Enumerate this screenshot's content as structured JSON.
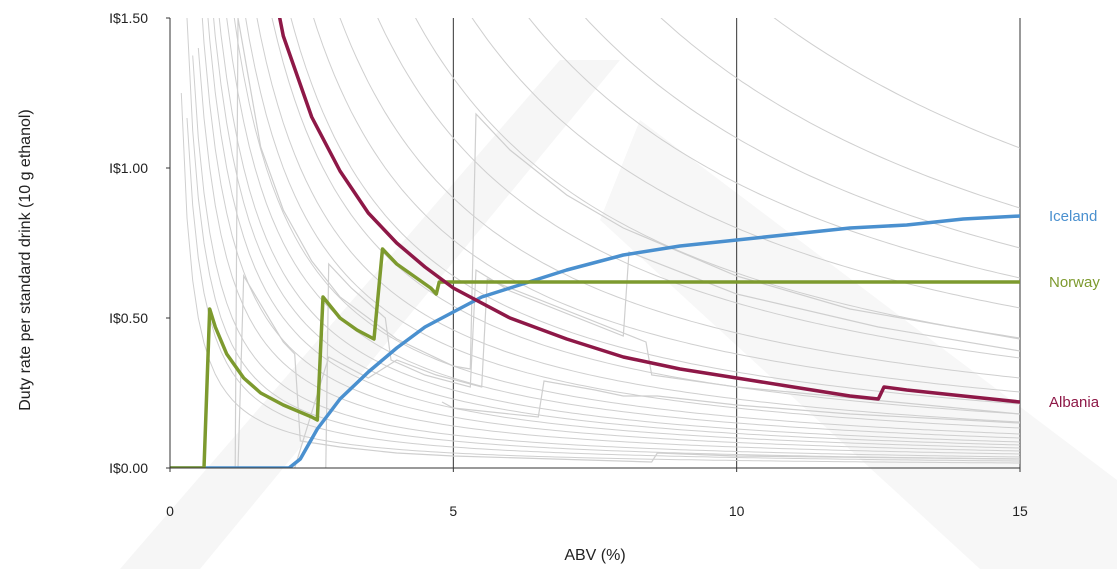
{
  "chart_data": {
    "type": "line",
    "xlabel": "ABV (%)",
    "ylabel": "Duty rate per standard drink (10 g ethanol)",
    "xlim": [
      0,
      15
    ],
    "ylim": [
      0,
      1.5
    ],
    "x_ticks": [
      0,
      5,
      10,
      15
    ],
    "x_tick_labels": [
      "0",
      "5",
      "10",
      "15"
    ],
    "y_ticks": [
      0,
      0.5,
      1.0,
      1.5
    ],
    "y_tick_labels": [
      "I$0.00",
      "I$0.50",
      "I$1.00",
      "I$1.50"
    ],
    "vertical_gridlines_at": [
      5,
      10,
      15
    ],
    "series": [
      {
        "name": "Iceland",
        "color": "#4a90cf",
        "points": [
          [
            0,
            0
          ],
          [
            2.1,
            0
          ],
          [
            2.3,
            0.03
          ],
          [
            2.6,
            0.13
          ],
          [
            3.0,
            0.23
          ],
          [
            3.5,
            0.32
          ],
          [
            4.0,
            0.4
          ],
          [
            4.5,
            0.47
          ],
          [
            5.0,
            0.52
          ],
          [
            5.5,
            0.57
          ],
          [
            6.0,
            0.6
          ],
          [
            7.0,
            0.66
          ],
          [
            8.0,
            0.71
          ],
          [
            9.0,
            0.74
          ],
          [
            10.0,
            0.76
          ],
          [
            11.0,
            0.78
          ],
          [
            12.0,
            0.8
          ],
          [
            13.0,
            0.81
          ],
          [
            14.0,
            0.83
          ],
          [
            15.0,
            0.84
          ]
        ]
      },
      {
        "name": "Norway",
        "color": "#7d9a2e",
        "points": [
          [
            0,
            0
          ],
          [
            0.6,
            0
          ],
          [
            0.7,
            0.53
          ],
          [
            0.8,
            0.47
          ],
          [
            1.0,
            0.38
          ],
          [
            1.3,
            0.3
          ],
          [
            1.6,
            0.25
          ],
          [
            2.0,
            0.21
          ],
          [
            2.5,
            0.17
          ],
          [
            2.6,
            0.16
          ],
          [
            2.7,
            0.57
          ],
          [
            3.0,
            0.5
          ],
          [
            3.3,
            0.46
          ],
          [
            3.6,
            0.43
          ],
          [
            3.75,
            0.73
          ],
          [
            4.0,
            0.68
          ],
          [
            4.3,
            0.64
          ],
          [
            4.6,
            0.6
          ],
          [
            4.7,
            0.58
          ],
          [
            4.75,
            0.62
          ],
          [
            15,
            0.62
          ]
        ]
      },
      {
        "name": "Albania",
        "color": "#8e1847",
        "points": [
          [
            1.8,
            1.63
          ],
          [
            2.0,
            1.44
          ],
          [
            2.5,
            1.17
          ],
          [
            3.0,
            0.99
          ],
          [
            3.5,
            0.85
          ],
          [
            4.0,
            0.75
          ],
          [
            4.5,
            0.67
          ],
          [
            5.0,
            0.6
          ],
          [
            6.0,
            0.5
          ],
          [
            7.0,
            0.43
          ],
          [
            8.0,
            0.37
          ],
          [
            9.0,
            0.33
          ],
          [
            10.0,
            0.3
          ],
          [
            11.0,
            0.27
          ],
          [
            12.0,
            0.24
          ],
          [
            12.5,
            0.23
          ],
          [
            12.6,
            0.27
          ],
          [
            13.0,
            0.26
          ],
          [
            14.0,
            0.24
          ],
          [
            15.0,
            0.22
          ]
        ]
      }
    ],
    "background_curves": {
      "color": "#cfcfcf",
      "hyperbolic_constants": [
        0.25,
        0.35,
        0.45,
        0.55,
        0.7,
        0.85,
        1.0,
        1.15,
        1.3,
        1.5,
        1.7,
        2.0,
        2.3,
        2.7,
        3.2,
        3.8,
        4.5,
        5.5,
        6.5,
        8.0,
        9.5,
        11.0,
        13.0,
        16.0
      ],
      "stepped": [
        {
          "points": [
            [
              0,
              0
            ],
            [
              1.15,
              0
            ],
            [
              1.2,
              1.5
            ],
            [
              1.6,
              1.07
            ],
            [
              2.0,
              0.86
            ],
            [
              2.5,
              0.69
            ],
            [
              3.0,
              0.57
            ],
            [
              4.0,
              0.43
            ],
            [
              5.0,
              0.34
            ],
            [
              5.3,
              0.33
            ],
            [
              5.4,
              1.18
            ],
            [
              6.0,
              1.06
            ],
            [
              7.0,
              0.91
            ],
            [
              8.0,
              0.8
            ],
            [
              10.0,
              0.64
            ],
            [
              12.0,
              0.53
            ],
            [
              15.0,
              0.43
            ]
          ]
        },
        {
          "points": [
            [
              2.75,
              0
            ],
            [
              2.8,
              0.68
            ],
            [
              3.2,
              0.6
            ],
            [
              3.8,
              0.5
            ],
            [
              3.9,
              0.36
            ],
            [
              4.5,
              0.31
            ],
            [
              5.3,
              0.27
            ],
            [
              5.4,
              0.66
            ],
            [
              6.0,
              0.59
            ],
            [
              8.0,
              0.44
            ],
            [
              8.1,
              0.72
            ],
            [
              10.0,
              0.58
            ],
            [
              12.5,
              0.47
            ],
            [
              15.0,
              0.39
            ]
          ]
        },
        {
          "points": [
            [
              1.2,
              0
            ],
            [
              1.3,
              0.64
            ],
            [
              2.0,
              0.42
            ],
            [
              2.2,
              0.38
            ],
            [
              2.3,
              0.09
            ],
            [
              3.0,
              0.07
            ],
            [
              4.0,
              0.05
            ],
            [
              5.0,
              0.04
            ],
            [
              8.5,
              0.02
            ],
            [
              8.6,
              0.05
            ],
            [
              10.0,
              0.04
            ],
            [
              15.0,
              0.03
            ]
          ]
        },
        {
          "points": [
            [
              2.2,
              0
            ],
            [
              2.8,
              0.37
            ],
            [
              3.5,
              0.3
            ],
            [
              4.0,
              0.36
            ],
            [
              4.7,
              0.31
            ],
            [
              5.5,
              0.27
            ],
            [
              5.6,
              0.63
            ],
            [
              8.4,
              0.42
            ],
            [
              8.5,
              0.31
            ],
            [
              10.0,
              0.27
            ],
            [
              15,
              0.18
            ]
          ]
        },
        {
          "points": [
            [
              4.8,
              0.22
            ],
            [
              5.0,
              0.2
            ],
            [
              6.5,
              0.17
            ],
            [
              6.6,
              0.29
            ],
            [
              7.5,
              0.26
            ],
            [
              8.0,
              0.24
            ],
            [
              8.6,
              0.24
            ],
            [
              10.0,
              0.21
            ],
            [
              12.0,
              0.18
            ],
            [
              15.0,
              0.15
            ]
          ]
        }
      ]
    }
  }
}
